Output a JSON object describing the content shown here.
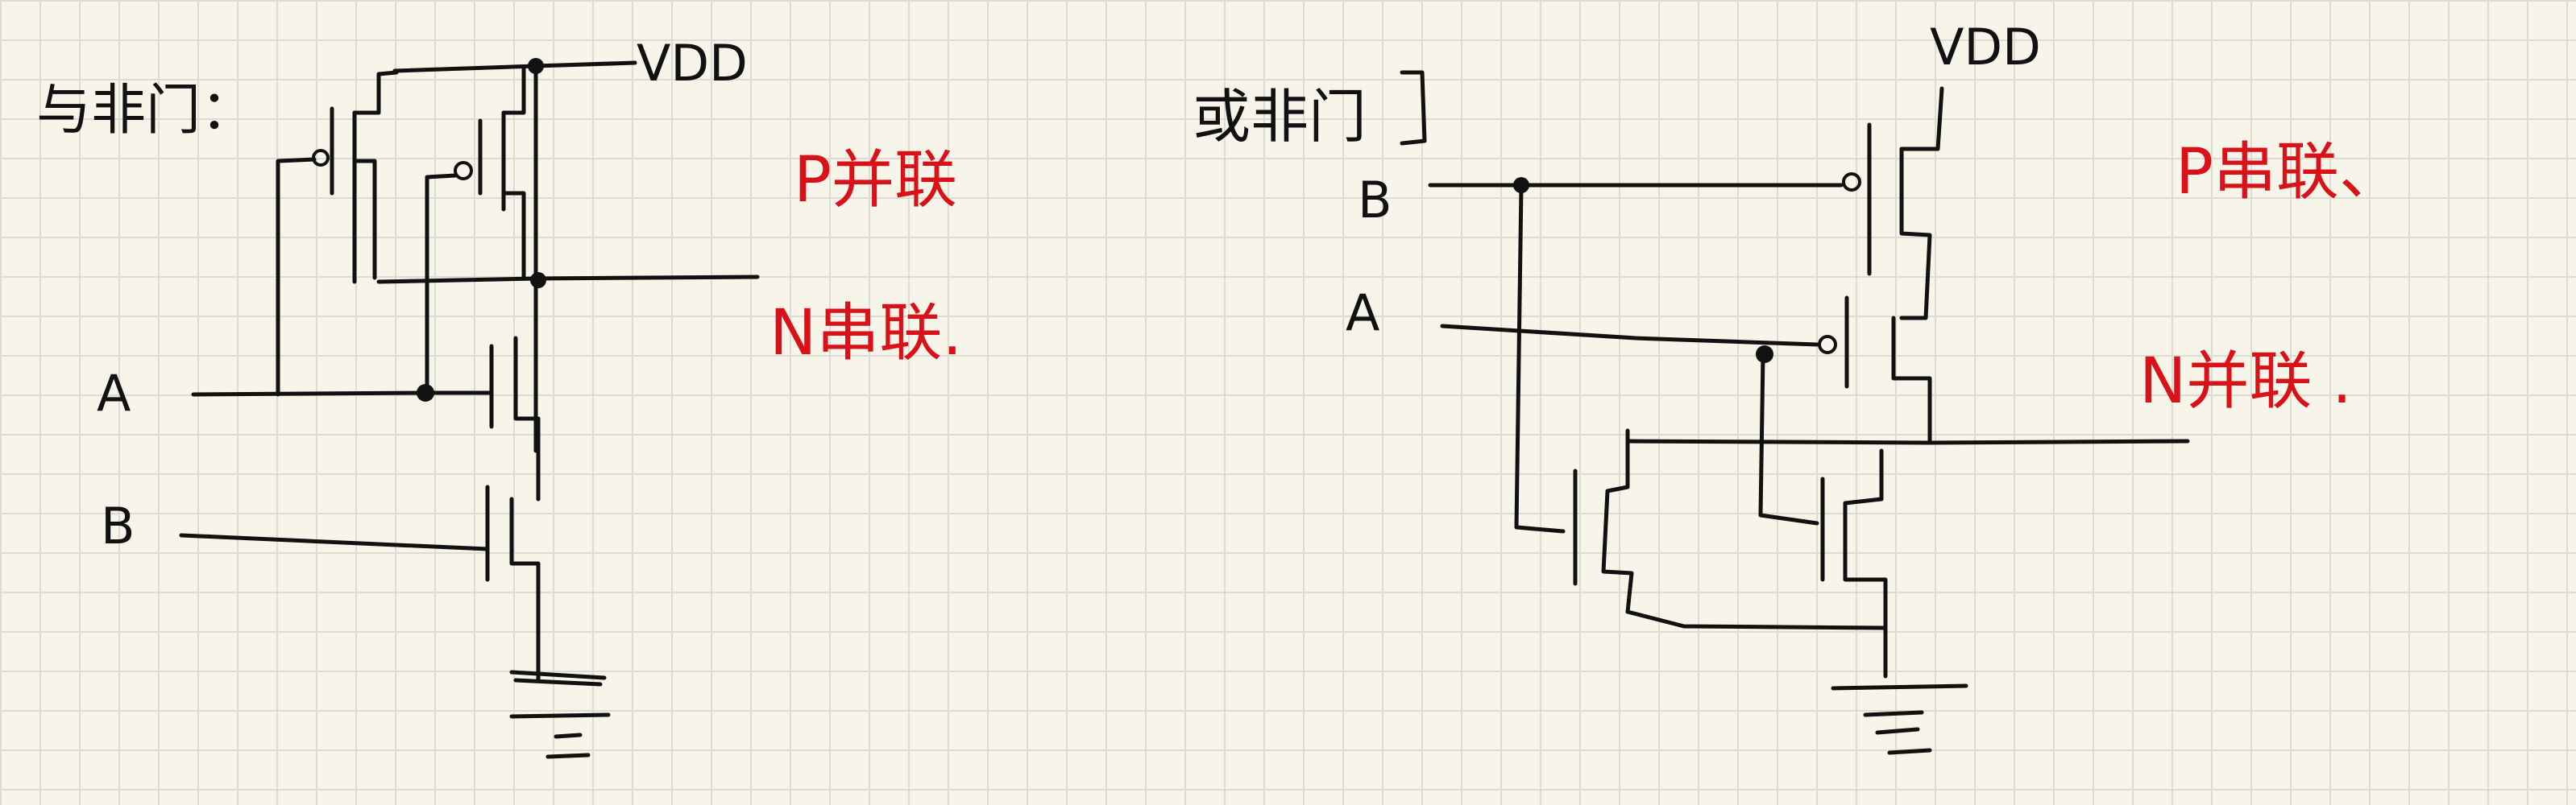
{
  "colors": {
    "ink": "#111111",
    "annotation": "#d9121a",
    "paper": "#f7f5ea",
    "grid": "#dcdcd2"
  },
  "left_circuit": {
    "title": "与非门：",
    "vdd": "VDD",
    "input_a": "A",
    "input_b": "B",
    "note_p": "P并联",
    "note_n": "N串联."
  },
  "right_circuit": {
    "title": "或非门",
    "vdd": "VDD",
    "input_b": "B",
    "input_a": "A",
    "note_p": "P串联、",
    "note_n": "N并联 ."
  }
}
